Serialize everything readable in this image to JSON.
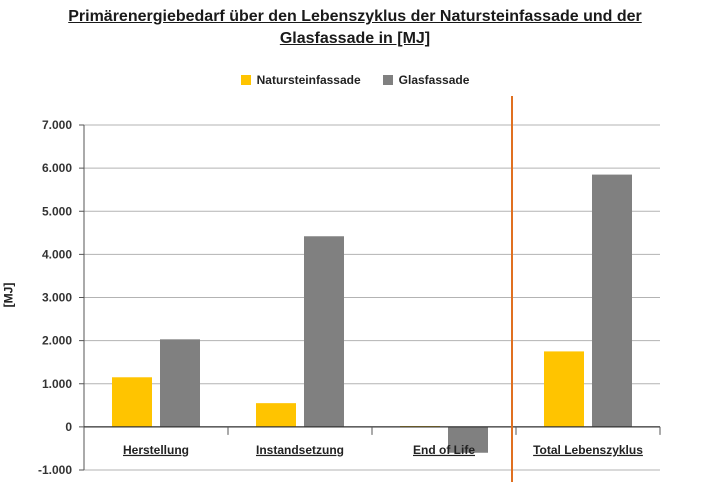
{
  "chart_data": {
    "type": "bar",
    "title_line1": "Primärenergiebedarf über den Lebenszyklus der Natursteinfassade und der",
    "title_line2": "Glasfassade in [MJ]",
    "ylabel": "[MJ]",
    "ylim": [
      -1000,
      7000
    ],
    "yticks": [
      -1000,
      0,
      1000,
      2000,
      3000,
      4000,
      5000,
      6000,
      7000
    ],
    "ytick_labels": [
      "-1.000",
      "0",
      "1.000",
      "2.000",
      "3.000",
      "4.000",
      "5.000",
      "6.000",
      "7.000"
    ],
    "categories": [
      "Herstellung",
      "Instandsetzung",
      "End of Life",
      "Total Lebenszyklus"
    ],
    "series": [
      {
        "name": "Natursteinfassade",
        "color": "#FFC400",
        "values": [
          1150,
          550,
          20,
          1750
        ]
      },
      {
        "name": "Glasfassade",
        "color": "#808080",
        "values": [
          2030,
          4420,
          -600,
          5850
        ]
      }
    ],
    "grid": true,
    "legend_position": "top-center",
    "separator_line": {
      "after_category": "End of Life",
      "color": "#E07020"
    }
  }
}
